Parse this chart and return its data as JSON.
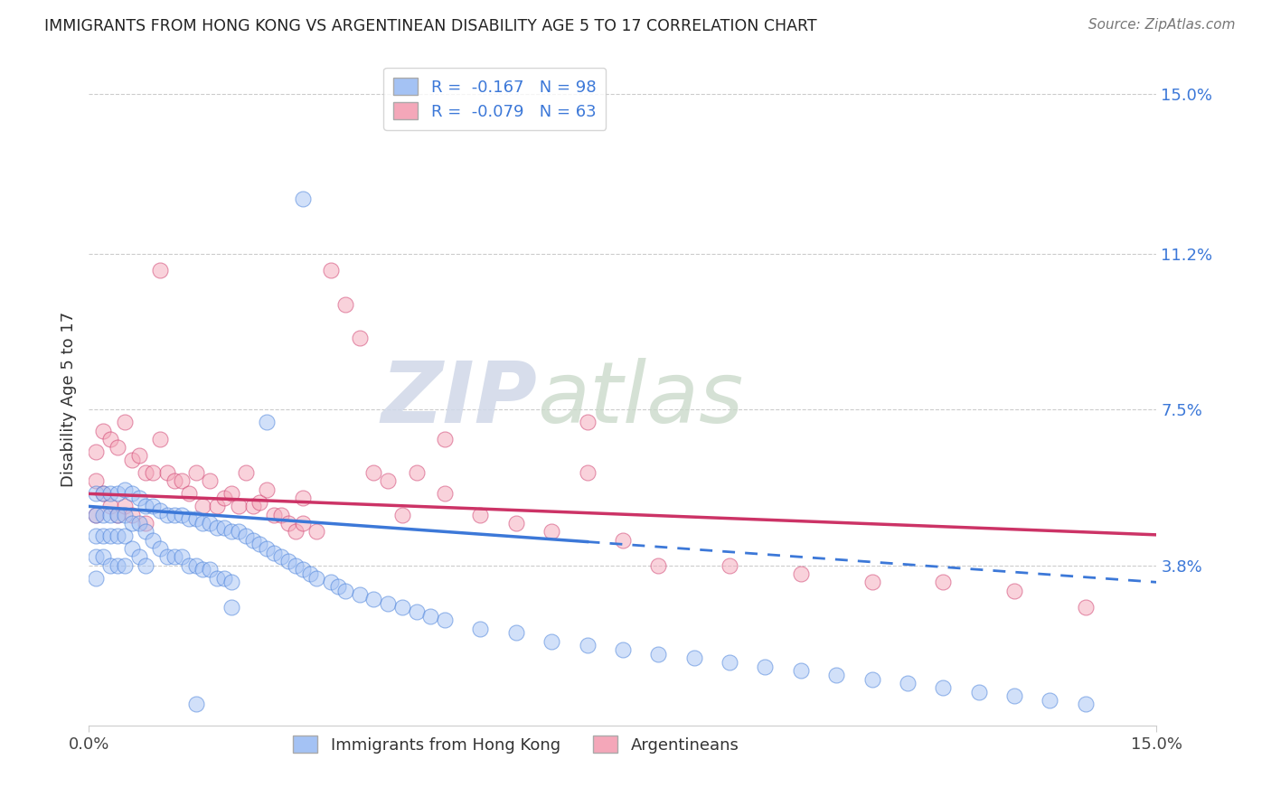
{
  "title": "IMMIGRANTS FROM HONG KONG VS ARGENTINEAN DISABILITY AGE 5 TO 17 CORRELATION CHART",
  "source": "Source: ZipAtlas.com",
  "ylabel": "Disability Age 5 to 17",
  "color_hk": "#a4c2f4",
  "color_arg": "#f4a7b9",
  "color_hk_line": "#3c78d8",
  "color_arg_line": "#cc3366",
  "color_grid": "#cccccc",
  "y_ticks": [
    0.038,
    0.075,
    0.112,
    0.15
  ],
  "y_tick_labels": [
    "3.8%",
    "7.5%",
    "11.2%",
    "15.0%"
  ],
  "x_min": 0.0,
  "x_max": 0.15,
  "y_min": 0.0,
  "y_max": 0.155,
  "legend_line1": "R =  -0.167   N = 98",
  "legend_line2": "R =  -0.079   N = 63",
  "watermark_zip": "ZIP",
  "watermark_atlas": "atlas",
  "blue_x": [
    0.001,
    0.001,
    0.001,
    0.001,
    0.001,
    0.002,
    0.002,
    0.002,
    0.002,
    0.003,
    0.003,
    0.003,
    0.003,
    0.004,
    0.004,
    0.004,
    0.004,
    0.005,
    0.005,
    0.005,
    0.005,
    0.006,
    0.006,
    0.006,
    0.007,
    0.007,
    0.007,
    0.008,
    0.008,
    0.008,
    0.009,
    0.009,
    0.01,
    0.01,
    0.011,
    0.011,
    0.012,
    0.012,
    0.013,
    0.013,
    0.014,
    0.014,
    0.015,
    0.015,
    0.016,
    0.016,
    0.017,
    0.017,
    0.018,
    0.018,
    0.019,
    0.019,
    0.02,
    0.02,
    0.021,
    0.022,
    0.023,
    0.024,
    0.025,
    0.026,
    0.027,
    0.028,
    0.029,
    0.03,
    0.031,
    0.032,
    0.034,
    0.035,
    0.036,
    0.038,
    0.04,
    0.042,
    0.044,
    0.046,
    0.048,
    0.05,
    0.055,
    0.06,
    0.065,
    0.07,
    0.075,
    0.08,
    0.085,
    0.09,
    0.095,
    0.1,
    0.105,
    0.11,
    0.115,
    0.12,
    0.125,
    0.13,
    0.135,
    0.14,
    0.03,
    0.025,
    0.02,
    0.015
  ],
  "blue_y": [
    0.055,
    0.05,
    0.045,
    0.04,
    0.035,
    0.055,
    0.05,
    0.045,
    0.04,
    0.055,
    0.05,
    0.045,
    0.038,
    0.055,
    0.05,
    0.045,
    0.038,
    0.056,
    0.05,
    0.045,
    0.038,
    0.055,
    0.048,
    0.042,
    0.054,
    0.048,
    0.04,
    0.052,
    0.046,
    0.038,
    0.052,
    0.044,
    0.051,
    0.042,
    0.05,
    0.04,
    0.05,
    0.04,
    0.05,
    0.04,
    0.049,
    0.038,
    0.049,
    0.038,
    0.048,
    0.037,
    0.048,
    0.037,
    0.047,
    0.035,
    0.047,
    0.035,
    0.046,
    0.034,
    0.046,
    0.045,
    0.044,
    0.043,
    0.042,
    0.041,
    0.04,
    0.039,
    0.038,
    0.037,
    0.036,
    0.035,
    0.034,
    0.033,
    0.032,
    0.031,
    0.03,
    0.029,
    0.028,
    0.027,
    0.026,
    0.025,
    0.023,
    0.022,
    0.02,
    0.019,
    0.018,
    0.017,
    0.016,
    0.015,
    0.014,
    0.013,
    0.012,
    0.011,
    0.01,
    0.009,
    0.008,
    0.007,
    0.006,
    0.005,
    0.125,
    0.072,
    0.028,
    0.005
  ],
  "pink_x": [
    0.001,
    0.001,
    0.001,
    0.002,
    0.002,
    0.003,
    0.003,
    0.004,
    0.004,
    0.005,
    0.005,
    0.006,
    0.006,
    0.007,
    0.008,
    0.008,
    0.009,
    0.01,
    0.011,
    0.012,
    0.013,
    0.014,
    0.015,
    0.016,
    0.017,
    0.018,
    0.019,
    0.02,
    0.021,
    0.022,
    0.023,
    0.024,
    0.025,
    0.026,
    0.027,
    0.028,
    0.029,
    0.03,
    0.032,
    0.034,
    0.036,
    0.038,
    0.04,
    0.042,
    0.044,
    0.046,
    0.05,
    0.055,
    0.06,
    0.065,
    0.07,
    0.075,
    0.08,
    0.09,
    0.1,
    0.11,
    0.12,
    0.13,
    0.14,
    0.01,
    0.03,
    0.05,
    0.07
  ],
  "pink_y": [
    0.065,
    0.058,
    0.05,
    0.07,
    0.055,
    0.068,
    0.052,
    0.066,
    0.05,
    0.072,
    0.052,
    0.063,
    0.05,
    0.064,
    0.06,
    0.048,
    0.06,
    0.068,
    0.06,
    0.058,
    0.058,
    0.055,
    0.06,
    0.052,
    0.058,
    0.052,
    0.054,
    0.055,
    0.052,
    0.06,
    0.052,
    0.053,
    0.056,
    0.05,
    0.05,
    0.048,
    0.046,
    0.048,
    0.046,
    0.108,
    0.1,
    0.092,
    0.06,
    0.058,
    0.05,
    0.06,
    0.055,
    0.05,
    0.048,
    0.046,
    0.072,
    0.044,
    0.038,
    0.038,
    0.036,
    0.034,
    0.034,
    0.032,
    0.028,
    0.108,
    0.054,
    0.068,
    0.06
  ]
}
